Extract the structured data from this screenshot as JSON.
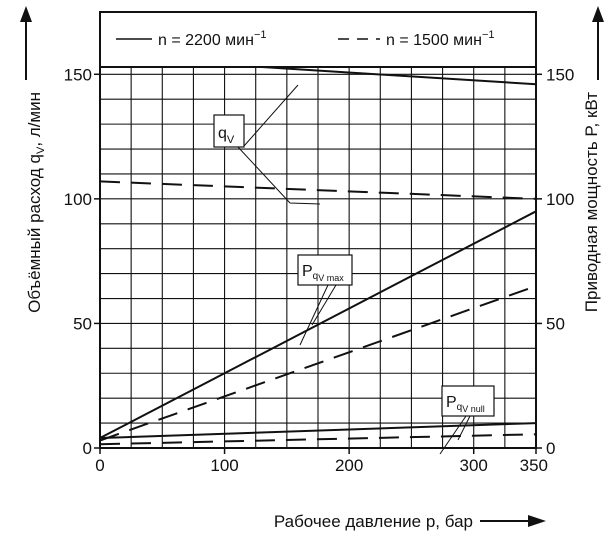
{
  "chart_data": {
    "type": "line",
    "title": "",
    "legend": {
      "placement": "top",
      "entries": [
        {
          "label": "n = 2200 мин",
          "sup": "−1",
          "line_style": "solid"
        },
        {
          "label": "n = 1500 мин",
          "sup": "−1",
          "line_style": "dashed"
        }
      ]
    },
    "x_axis": {
      "label": "Рабочее давление p, бар",
      "range": [
        0,
        350
      ],
      "ticks": [
        0,
        100,
        200,
        300,
        350
      ]
    },
    "y_axis_left": {
      "label_main": "Объёмный расход q",
      "label_sub": "V",
      "label_tail": ", л/мин",
      "range": [
        0,
        175
      ],
      "ticks": [
        0,
        50,
        100,
        150
      ]
    },
    "y_axis_right": {
      "label_main": "Приводная мощность P, кВт",
      "range": [
        0,
        175
      ],
      "ticks": [
        0,
        50,
        100,
        150
      ]
    },
    "grid": true,
    "series": [
      {
        "group": "qV",
        "line_style": "solid",
        "x": [
          0,
          350
        ],
        "y": [
          157,
          146
        ]
      },
      {
        "group": "qV",
        "line_style": "dashed",
        "x": [
          0,
          350
        ],
        "y": [
          107,
          100
        ]
      },
      {
        "group": "Pqvmax",
        "line_style": "solid",
        "x": [
          0,
          350
        ],
        "y": [
          4,
          95
        ]
      },
      {
        "group": "Pqvmax",
        "line_style": "dashed",
        "x": [
          0,
          350
        ],
        "y": [
          3,
          65
        ]
      },
      {
        "group": "Pqvnull",
        "line_style": "solid",
        "x": [
          0,
          350
        ],
        "y": [
          4,
          10
        ]
      },
      {
        "group": "Pqvnull",
        "line_style": "dashed",
        "x": [
          0,
          350
        ],
        "y": [
          1.5,
          5.5
        ]
      }
    ],
    "annotations": [
      {
        "id": "qV",
        "main": "q",
        "sub": "V"
      },
      {
        "id": "Pqvmax",
        "main": "P",
        "sub": "q",
        "subsub": "V max"
      },
      {
        "id": "Pqvnull",
        "main": "P",
        "sub": "q",
        "subsub": "V null"
      }
    ]
  }
}
